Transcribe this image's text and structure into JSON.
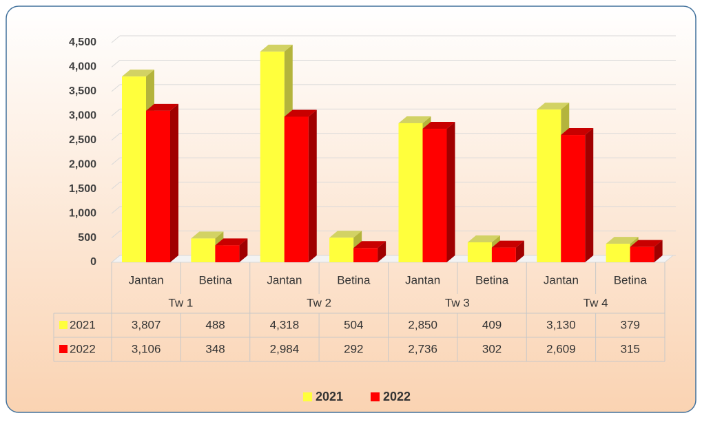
{
  "chart_data": {
    "type": "bar3d",
    "categories": [
      "Jantan",
      "Betina",
      "Jantan",
      "Betina",
      "Jantan",
      "Betina",
      "Jantan",
      "Betina"
    ],
    "groups": [
      "Tw 1",
      "Tw 2",
      "Tw 3",
      "Tw 4"
    ],
    "series": [
      {
        "name": "2021",
        "color": "#ffff3c",
        "side": "#b4b43c",
        "top": "#d2d264",
        "values": [
          3807,
          488,
          4318,
          504,
          2850,
          409,
          3130,
          379
        ],
        "value_labels": [
          "3,807",
          "488",
          "4,318",
          "504",
          "2,850",
          "409",
          "3,130",
          "379"
        ]
      },
      {
        "name": "2022",
        "color": "#ff0000",
        "side": "#a00000",
        "top": "#c80000",
        "values": [
          3106,
          348,
          2984,
          292,
          2736,
          302,
          2609,
          315
        ],
        "value_labels": [
          "3,106",
          "348",
          "2,984",
          "292",
          "2,736",
          "302",
          "2,609",
          "315"
        ]
      }
    ],
    "ylim": [
      0,
      4500
    ],
    "yticks": [
      0,
      500,
      {
        "value": 1000,
        "label": "1,000"
      },
      {
        "value": 1500,
        "label": "1,500"
      },
      {
        "value": 2000,
        "label": "2,000"
      },
      {
        "value": 2500,
        "label": "2,500"
      },
      {
        "value": 3000,
        "label": "3,000"
      },
      {
        "value": 3500,
        "label": "3,500"
      },
      {
        "value": 4000,
        "label": "4,000"
      },
      {
        "value": 4500,
        "label": "4,500"
      }
    ],
    "grid": true,
    "legend": "bottom"
  }
}
